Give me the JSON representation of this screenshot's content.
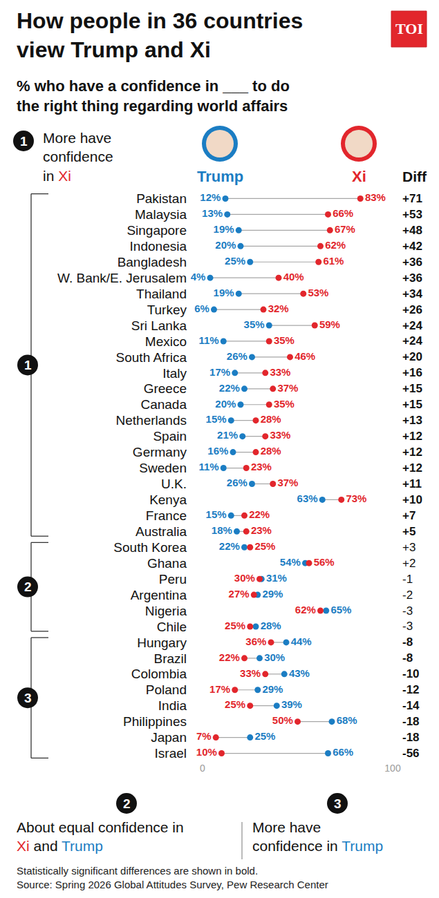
{
  "chart_data": {
    "type": "dumbbell",
    "title": "How people in 36 countries view Trump and Xi",
    "subtitle": "% who have a confidence in ___ to do the right thing regarding world affairs",
    "logo": "TOI",
    "orientation": "horizontal",
    "data_labels": true,
    "grid": false,
    "categories": [
      "Pakistan",
      "Malaysia",
      "Singapore",
      "Indonesia",
      "Bangladesh",
      "W. Bank/E. Jerusalem",
      "Thailand",
      "Turkey",
      "Sri Lanka",
      "Mexico",
      "South Africa",
      "Italy",
      "Greece",
      "Canada",
      "Netherlands",
      "Spain",
      "Germany",
      "Sweden",
      "U.K.",
      "Kenya",
      "France",
      "Australia",
      "South Korea",
      "Ghana",
      "Peru",
      "Argentina",
      "Nigeria",
      "Chile",
      "Hungary",
      "Brazil",
      "Colombia",
      "Poland",
      "India",
      "Philippines",
      "Japan",
      "Israel"
    ],
    "series": [
      {
        "name": "Trump",
        "color": "#1b7dc3",
        "values": [
          12,
          13,
          19,
          20,
          25,
          4,
          19,
          6,
          35,
          11,
          26,
          17,
          22,
          20,
          15,
          21,
          16,
          11,
          26,
          63,
          15,
          18,
          22,
          54,
          31,
          29,
          65,
          28,
          44,
          30,
          43,
          29,
          39,
          68,
          25,
          66
        ],
        "value_labels": [
          "12%",
          "13%",
          "19%",
          "20%",
          "25%",
          "4%",
          "19%",
          "6%",
          "35%",
          "11%",
          "26%",
          "17%",
          "22%",
          "20%",
          "15%",
          "21%",
          "16%",
          "11%",
          "26%",
          "63%",
          "15%",
          "18%",
          "22%",
          "54%",
          "31%",
          "29%",
          "65%",
          "28%",
          "44%",
          "30%",
          "43%",
          "29%",
          "39%",
          "68%",
          "25%",
          "66%"
        ]
      },
      {
        "name": "Xi",
        "color": "#e2262c",
        "values": [
          83,
          66,
          67,
          62,
          61,
          40,
          53,
          32,
          59,
          35,
          46,
          33,
          37,
          35,
          28,
          33,
          28,
          23,
          37,
          73,
          22,
          23,
          25,
          56,
          30,
          27,
          62,
          25,
          36,
          22,
          33,
          17,
          25,
          50,
          7,
          10
        ],
        "value_labels": [
          "83%",
          "66%",
          "67%",
          "62%",
          "61%",
          "40%",
          "53%",
          "32%",
          "59%",
          "35%",
          "46%",
          "33%",
          "37%",
          "35%",
          "28%",
          "33%",
          "28%",
          "23%",
          "37%",
          "73%",
          "22%",
          "23%",
          "25%",
          "56%",
          "30%",
          "27%",
          "62%",
          "25%",
          "36%",
          "22%",
          "33%",
          "17%",
          "25%",
          "50%",
          "7%",
          "10%"
        ]
      }
    ],
    "diff": {
      "name": "Diff",
      "values": [
        71,
        53,
        48,
        42,
        36,
        36,
        34,
        26,
        24,
        24,
        20,
        16,
        15,
        15,
        13,
        12,
        12,
        12,
        11,
        10,
        7,
        5,
        3,
        2,
        -1,
        -2,
        -3,
        -3,
        -8,
        -8,
        -10,
        -12,
        -14,
        -18,
        -18,
        -56
      ],
      "value_labels": [
        "+71",
        "+53",
        "+48",
        "+42",
        "+36",
        "+36",
        "+34",
        "+26",
        "+24",
        "+24",
        "+20",
        "+16",
        "+15",
        "+15",
        "+13",
        "+12",
        "+12",
        "+12",
        "+11",
        "+10",
        "+7",
        "+5",
        "+3",
        "+2",
        "-1",
        "-2",
        "-3",
        "-3",
        "-8",
        "-8",
        "-10",
        "-12",
        "-14",
        "-18",
        "-18",
        "-56"
      ],
      "significant": [
        true,
        true,
        true,
        true,
        true,
        true,
        true,
        true,
        true,
        true,
        true,
        true,
        true,
        true,
        true,
        true,
        true,
        true,
        true,
        true,
        true,
        true,
        false,
        false,
        false,
        false,
        false,
        false,
        true,
        true,
        true,
        true,
        true,
        true,
        true,
        true
      ]
    },
    "groups": [
      {
        "label": "1",
        "text": "More have confidence in Xi",
        "first": "Pakistan",
        "last": "Australia"
      },
      {
        "label": "2",
        "text": "About equal confidence in Xi and Trump",
        "first": "South Korea",
        "last": "Chile"
      },
      {
        "label": "3",
        "text": "More have confidence in Trump",
        "first": "Hungary",
        "last": "Israel"
      }
    ],
    "xlim": [
      0,
      100
    ],
    "xticks": [
      0,
      100
    ],
    "notes": [
      "Statistically significant differences are shown in bold.",
      "Source: Spring 2026 Global Attitudes Survey, Pew Research Center"
    ]
  }
}
